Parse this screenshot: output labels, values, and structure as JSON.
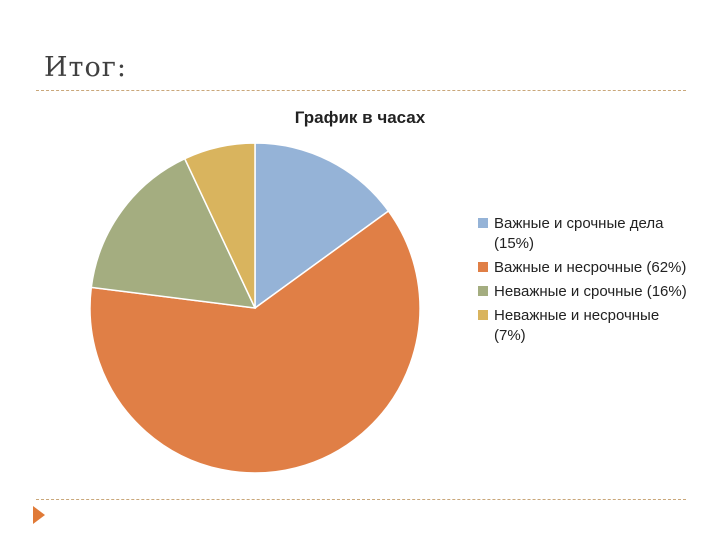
{
  "slide": {
    "title": "Итог:"
  },
  "chart_data": {
    "type": "pie",
    "title": "График в часах",
    "legend_position": "right",
    "slices": [
      {
        "label": "Важные и срочные дела (15%)",
        "value": 15,
        "color": "#95b3d7"
      },
      {
        "label": "Важные и несрочные (62%)",
        "value": 62,
        "color": "#e07f46"
      },
      {
        "label": "Неважные и срочные (16%)",
        "value": 16,
        "color": "#a4ad80"
      },
      {
        "label": "Неважные и несрочные (7%)",
        "value": 7,
        "color": "#d9b45e"
      }
    ]
  },
  "decor": {
    "arrow_icon": "triangle-right-icon",
    "rule_color": "#c9a77a"
  }
}
